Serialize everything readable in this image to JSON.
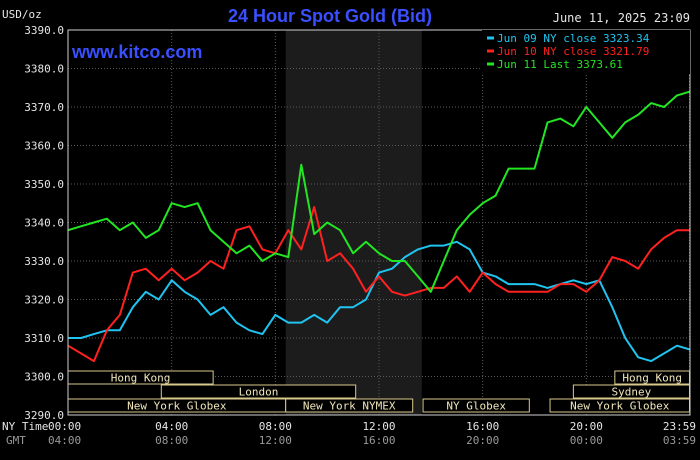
{
  "header": {
    "title": "24 Hour Spot Gold (Bid)",
    "units": "USD/oz",
    "date": "June 11, 2025 23:09",
    "website": "www.kitco.com"
  },
  "chart_data": {
    "type": "line",
    "title": "24 Hour Spot Gold (Bid)",
    "ylabel": "USD/oz",
    "xlabel": "",
    "ylim": [
      3290,
      3390
    ],
    "xlim": [
      0,
      24
    ],
    "y_ticks": [
      "3390.0",
      "3380.0",
      "3370.0",
      "3360.0",
      "3350.0",
      "3340.0",
      "3330.0",
      "3320.0",
      "3310.0",
      "3300.0",
      "3290.0"
    ],
    "x_ticks": [
      {
        "h": 0,
        "ny": "00:00",
        "gmt": "04:00"
      },
      {
        "h": 4,
        "ny": "04:00",
        "gmt": "08:00"
      },
      {
        "h": 8,
        "ny": "08:00",
        "gmt": "12:00"
      },
      {
        "h": 12,
        "ny": "12:00",
        "gmt": "16:00"
      },
      {
        "h": 16,
        "ny": "16:00",
        "gmt": "20:00"
      },
      {
        "h": 20,
        "ny": "20:00",
        "gmt": "00:00"
      },
      {
        "h": 23.98,
        "ny": "23:59",
        "gmt": "03:59"
      }
    ],
    "time_labels": {
      "ny": "NY Time",
      "gmt": "GMT"
    },
    "grid": true,
    "legend_position": "top-right",
    "shaded_hours": [
      8.4,
      13.65
    ],
    "sessions": [
      {
        "label": "Hong Kong",
        "row": 0,
        "start": 0,
        "end": 5.6
      },
      {
        "label": "Hong Kong",
        "row": 0,
        "start": 21.1,
        "end": 23.98
      },
      {
        "label": "London",
        "row": 1,
        "start": 3.6,
        "end": 11.1
      },
      {
        "label": "Sydney",
        "row": 1,
        "start": 19.5,
        "end": 23.98
      },
      {
        "label": "New York Globex",
        "row": 2,
        "start": 0,
        "end": 8.4
      },
      {
        "label": "New York NYMEX",
        "row": 2,
        "start": 8.4,
        "end": 13.3
      },
      {
        "label": "NY Globex",
        "row": 2,
        "start": 13.7,
        "end": 17.8
      },
      {
        "label": "New York Globex",
        "row": 2,
        "start": 18.6,
        "end": 23.98
      }
    ],
    "series": [
      {
        "name": "Jun 09 NY close 3323.34",
        "color": "#1fc4f0",
        "x": [
          0,
          0.5,
          1,
          1.5,
          2,
          2.5,
          3,
          3.5,
          4,
          4.5,
          5,
          5.5,
          6,
          6.5,
          7,
          7.5,
          8,
          8.5,
          9,
          9.5,
          10,
          10.5,
          11,
          11.5,
          12,
          12.5,
          13,
          13.5,
          14,
          14.5,
          15,
          15.5,
          16,
          16.5,
          17,
          17.5,
          18,
          18.5,
          19,
          19.5,
          20,
          20.5,
          21,
          21.5,
          22,
          22.5,
          23,
          23.5,
          24
        ],
        "y": [
          3310,
          3310,
          3311,
          3312,
          3312,
          3318,
          3322,
          3320,
          3325,
          3322,
          3320,
          3316,
          3318,
          3314,
          3312,
          3311,
          3316,
          3314,
          3314,
          3316,
          3314,
          3318,
          3318,
          3320,
          3327,
          3328,
          3331,
          3333,
          3334,
          3334,
          3335,
          3333,
          3327,
          3326,
          3324,
          3324,
          3324,
          3323,
          3324,
          3325,
          3324,
          3325,
          3318,
          3310,
          3305,
          3304,
          3306,
          3308,
          3307
        ]
      },
      {
        "name": "Jun 10 NY close 3321.79",
        "color": "#ff2020",
        "x": [
          0,
          0.5,
          1,
          1.5,
          2,
          2.5,
          3,
          3.5,
          4,
          4.5,
          5,
          5.5,
          6,
          6.5,
          7,
          7.5,
          8,
          8.5,
          9,
          9.5,
          10,
          10.5,
          11,
          11.5,
          12,
          12.5,
          13,
          13.5,
          14,
          14.5,
          15,
          15.5,
          16,
          16.5,
          17,
          17.5,
          18,
          18.5,
          19,
          19.5,
          20,
          20.5,
          21,
          21.5,
          22,
          22.5,
          23,
          23.5,
          24
        ],
        "y": [
          3308,
          3306,
          3304,
          3312,
          3316,
          3327,
          3328,
          3325,
          3328,
          3325,
          3327,
          3330,
          3328,
          3338,
          3339,
          3333,
          3332,
          3338,
          3333,
          3344,
          3330,
          3332,
          3328,
          3322,
          3326,
          3322,
          3321,
          3322,
          3323,
          3323,
          3326,
          3322,
          3327,
          3324,
          3322,
          3322,
          3322,
          3322,
          3324,
          3324,
          3322,
          3325,
          3331,
          3330,
          3328,
          3333,
          3336,
          3338,
          3338
        ]
      },
      {
        "name": "Jun 11 Last 3373.61",
        "color": "#22e622",
        "x": [
          0,
          0.5,
          1,
          1.5,
          2,
          2.5,
          3,
          3.5,
          4,
          4.5,
          5,
          5.5,
          6,
          6.5,
          7,
          7.5,
          8,
          8.5,
          9,
          9.5,
          10,
          10.5,
          11,
          11.5,
          12,
          12.5,
          13,
          13.5,
          14,
          14.5,
          15,
          15.5,
          16,
          16.5,
          17,
          17.5,
          18,
          18.5,
          19,
          19.5,
          20,
          20.5,
          21,
          21.5,
          22,
          22.5,
          23,
          23.5,
          24
        ],
        "y": [
          3338,
          3339,
          3340,
          3341,
          3338,
          3340,
          3336,
          3338,
          3345,
          3344,
          3345,
          3338,
          3335,
          3332,
          3334,
          3330,
          3332,
          3331,
          3355,
          3337,
          3340,
          3338,
          3332,
          3335,
          3332,
          3330,
          3330,
          3326,
          3322,
          3330,
          3338,
          3342,
          3345,
          3347,
          3354,
          3354,
          3354,
          3366,
          3367,
          3365,
          3370,
          3366,
          3362,
          3366,
          3368,
          3371,
          3370,
          3373,
          3374
        ]
      }
    ]
  }
}
